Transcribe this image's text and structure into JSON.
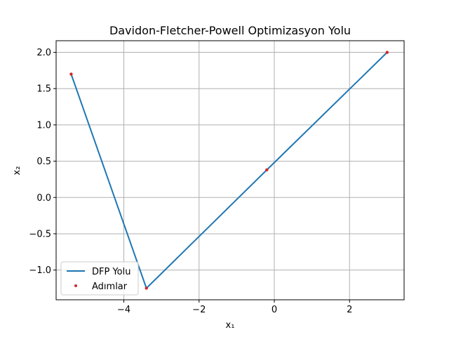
{
  "chart_data": {
    "type": "line",
    "title": "Davidon-Fletcher-Powell Optimizasyon Yolu",
    "xlabel": "x₁",
    "ylabel": "x₂",
    "xlim": [
      -5.8,
      3.45
    ],
    "ylim": [
      -1.41,
      2.16
    ],
    "xticks": [
      -4,
      -2,
      0,
      2
    ],
    "xtick_labels": [
      "−4",
      "−2",
      "0",
      "2"
    ],
    "yticks": [
      -1.0,
      -0.5,
      0.0,
      0.5,
      1.0,
      1.5,
      2.0
    ],
    "ytick_labels": [
      "−1.0",
      "−0.5",
      "0.0",
      "0.5",
      "1.0",
      "1.5",
      "2.0"
    ],
    "grid": true,
    "legend_position": "lower-left",
    "series": [
      {
        "name": "DFP Yolu",
        "kind": "line",
        "color": "#1f77b4",
        "points": [
          {
            "x": 3.0,
            "y": 2.0
          },
          {
            "x": -0.2,
            "y": 0.38
          },
          {
            "x": -3.4,
            "y": -1.25
          },
          {
            "x": -5.4,
            "y": 1.7
          }
        ]
      },
      {
        "name": "Adımlar",
        "kind": "scatter",
        "color": "#d62728",
        "points": [
          {
            "x": 3.0,
            "y": 2.0
          },
          {
            "x": -0.2,
            "y": 0.38
          },
          {
            "x": -3.4,
            "y": -1.25
          },
          {
            "x": -5.4,
            "y": 1.7
          }
        ]
      }
    ]
  }
}
